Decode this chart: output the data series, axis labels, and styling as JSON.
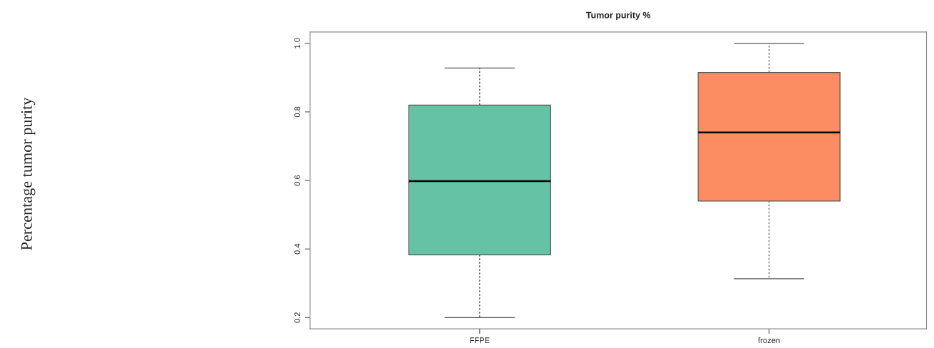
{
  "chart_data": {
    "type": "box",
    "title": "Tumor purity %",
    "annotations": [
      "Percentage tumor purity"
    ],
    "categories": [
      "FFPE",
      "frozen"
    ],
    "boxes": [
      {
        "low": 0.2,
        "q1": 0.383,
        "median": 0.598,
        "q3": 0.82,
        "high": 0.928
      },
      {
        "low": 0.313,
        "q1": 0.54,
        "median": 0.74,
        "q3": 0.915,
        "high": 1.0
      }
    ],
    "colors": [
      "#66c2a5",
      "#fc8d62"
    ],
    "ylim": [
      0.167,
      1.033
    ],
    "yticks": [
      0.2,
      0.4,
      0.6,
      0.8,
      {
        "value": 1.0,
        "label": "1.0"
      }
    ],
    "grid": false,
    "legend": false
  }
}
